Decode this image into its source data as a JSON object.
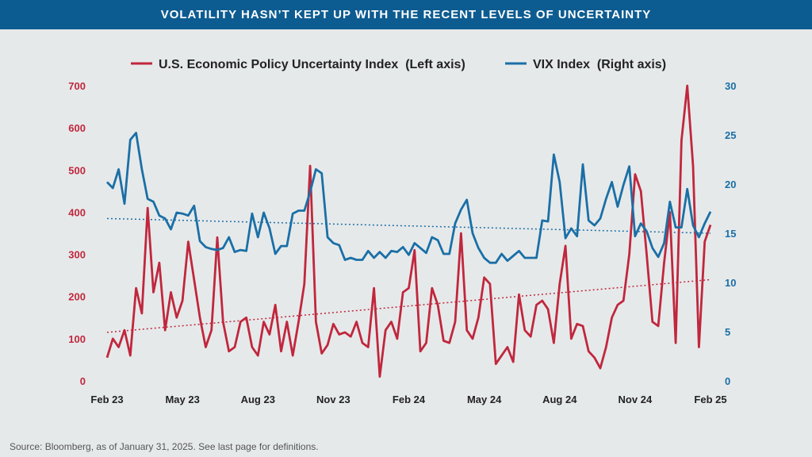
{
  "title": "VOLATILITY HASN’T KEPT UP WITH THE RECENT LEVELS OF UNCERTAINTY",
  "source": "Source: Bloomberg, as of January 31, 2025. See last page for definitions.",
  "colors": {
    "epu": "#c0273d",
    "vix": "#1a6fa6",
    "banner": "#0d5c91",
    "background": "#e6e9ea"
  },
  "chart_data": {
    "type": "line",
    "x_tick_labels": [
      "Feb 23",
      "May 23",
      "Aug 23",
      "Nov 23",
      "Feb 24",
      "May 24",
      "Aug 24",
      "Nov 24",
      "Feb 25"
    ],
    "x_range": [
      "2023-02-01",
      "2025-02-01"
    ],
    "left_axis": {
      "ticks": [
        0,
        100,
        200,
        300,
        400,
        500,
        600,
        700
      ],
      "range": [
        0,
        700
      ],
      "color": "#c0273d"
    },
    "right_axis": {
      "ticks": [
        0,
        5,
        10,
        15,
        20,
        25,
        30
      ],
      "range": [
        0,
        30
      ],
      "color": "#1a6fa6"
    },
    "legend_placement": "top",
    "grid": false,
    "series": [
      {
        "name": "U.S. Economic Policy Uncertainty Index  (Left axis)",
        "axis": "left",
        "color": "#c0273d",
        "values": [
          55,
          100,
          80,
          120,
          60,
          220,
          160,
          410,
          210,
          280,
          120,
          210,
          150,
          190,
          330,
          240,
          150,
          80,
          120,
          340,
          140,
          70,
          80,
          140,
          150,
          80,
          60,
          140,
          110,
          180,
          70,
          140,
          60,
          140,
          230,
          510,
          140,
          65,
          85,
          135,
          110,
          115,
          105,
          140,
          90,
          80,
          220,
          10,
          120,
          140,
          100,
          210,
          220,
          310,
          70,
          90,
          220,
          180,
          95,
          90,
          140,
          350,
          120,
          100,
          150,
          245,
          230,
          40,
          60,
          80,
          45,
          205,
          120,
          105,
          180,
          190,
          170,
          90,
          230,
          320,
          100,
          135,
          130,
          70,
          55,
          30,
          80,
          150,
          180,
          190,
          300,
          490,
          450,
          300,
          140,
          130,
          280,
          400,
          90,
          570,
          700,
          510,
          80,
          330,
          370
        ],
        "trend_start": 115,
        "trend_end": 240
      },
      {
        "name": "VIX Index  (Right axis)",
        "axis": "right",
        "color": "#1a6fa6",
        "values": [
          20.2,
          19.6,
          21.5,
          18.0,
          24.5,
          25.2,
          21.5,
          18.5,
          18.2,
          16.8,
          16.5,
          15.4,
          17.1,
          17.0,
          16.8,
          17.8,
          14.2,
          13.6,
          13.4,
          13.3,
          13.5,
          14.6,
          13.1,
          13.3,
          13.2,
          17.0,
          14.6,
          17.1,
          15.5,
          12.9,
          13.7,
          13.7,
          17.0,
          17.3,
          17.3,
          19.2,
          21.5,
          21.1,
          14.6,
          14.0,
          13.8,
          12.3,
          12.5,
          12.3,
          12.3,
          13.2,
          12.5,
          13.1,
          12.5,
          13.2,
          13.1,
          13.6,
          12.8,
          14.0,
          13.5,
          13.0,
          14.6,
          14.3,
          12.9,
          12.9,
          16.0,
          17.4,
          18.4,
          15.0,
          13.5,
          12.5,
          12.0,
          12.0,
          12.9,
          12.2,
          12.7,
          13.2,
          12.5,
          12.5,
          12.5,
          16.3,
          16.2,
          23.0,
          20.2,
          14.5,
          15.5,
          14.7,
          22.0,
          16.3,
          15.8,
          16.5,
          18.5,
          20.2,
          17.7,
          19.9,
          21.8,
          14.7,
          16.0,
          15.2,
          13.5,
          12.6,
          14.0,
          18.2,
          15.6,
          15.6,
          19.5,
          15.8,
          14.6,
          16.0,
          17.2
        ],
        "trend_start": 16.5,
        "trend_end": 15.0
      }
    ]
  }
}
